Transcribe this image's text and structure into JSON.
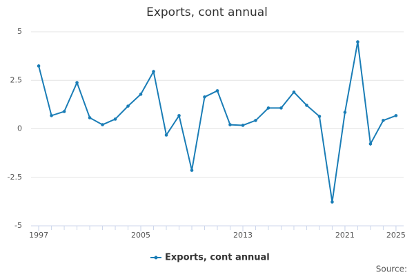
{
  "chart_data": {
    "type": "line",
    "title": "Exports, cont annual",
    "source": "Source:",
    "x": [
      1997,
      1998,
      1999,
      2000,
      2001,
      2002,
      2003,
      2004,
      2005,
      2006,
      2007,
      2008,
      2009,
      2010,
      2011,
      2012,
      2013,
      2014,
      2015,
      2016,
      2017,
      2018,
      2019,
      2020,
      2021,
      2022,
      2023,
      2024,
      2025
    ],
    "series": [
      {
        "name": "Exports, cont annual",
        "color": "#1a7db6",
        "values": [
          3.24,
          0.68,
          0.89,
          2.38,
          0.57,
          0.21,
          0.5,
          1.17,
          1.78,
          2.95,
          -0.32,
          0.68,
          -2.14,
          1.64,
          1.96,
          0.21,
          0.18,
          0.43,
          1.07,
          1.07,
          1.89,
          1.21,
          0.64,
          -3.77,
          0.85,
          4.48,
          -0.78,
          0.43,
          0.68
        ]
      }
    ],
    "xlim": [
      1996.4,
      2025.6
    ],
    "xticks": [
      1997,
      2005,
      2013,
      2021,
      2025
    ],
    "ylim": [
      -5,
      5
    ],
    "yticks": [
      5,
      2.5,
      0,
      -2.5,
      -5
    ],
    "grid": true,
    "legend": "bottom"
  }
}
